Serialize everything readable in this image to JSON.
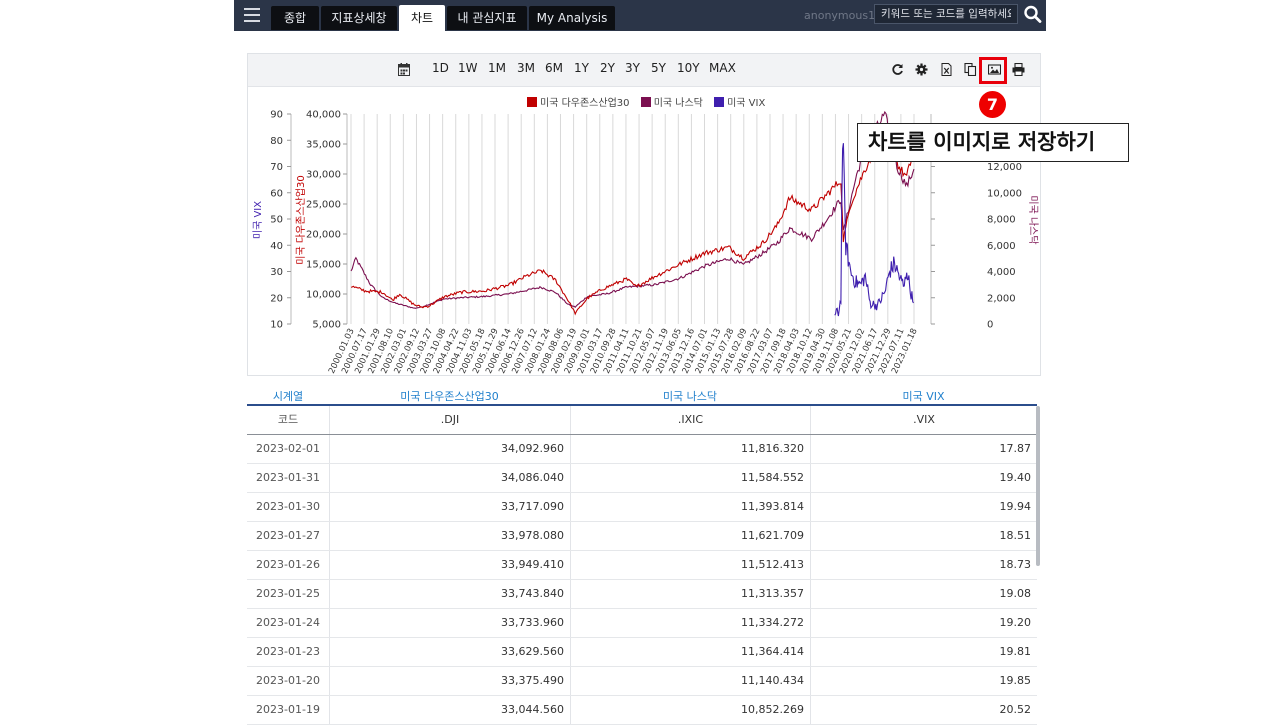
{
  "nav": {
    "tabs": [
      {
        "label": "종합"
      },
      {
        "label": "지표상세창"
      },
      {
        "label": "차트"
      },
      {
        "label": "내 관심지표"
      },
      {
        "label": "My Analysis"
      }
    ],
    "active_tab": "차트",
    "username": "anonymous1",
    "search_placeholder": "키워드 또는 코드를 입력하세요"
  },
  "toolbar": {
    "periods": [
      "1D",
      "1W",
      "1M",
      "3M",
      "6M",
      "1Y",
      "2Y",
      "3Y",
      "5Y",
      "10Y",
      "MAX"
    ],
    "icons": [
      "refresh-icon",
      "settings-icon",
      "excel-icon",
      "copy-icon",
      "image-save-icon",
      "print-icon"
    ]
  },
  "annotation": {
    "step": "7",
    "callout": "차트를 이미지로 저장하기",
    "highlight_color": "#e8000b"
  },
  "chart_data": {
    "type": "line",
    "legend_placement": "top-center",
    "series": [
      {
        "name": "미국 다우존스산업30",
        "color": "#c00000",
        "axis": "left-inner"
      },
      {
        "name": "미국 나스닥",
        "color": "#7b1050",
        "axis": "right"
      },
      {
        "name": "미국 VIX",
        "color": "#3f1fae",
        "axis": "left-outer"
      }
    ],
    "axes": {
      "vix": {
        "label": "미국 VIX",
        "ticks": [
          "90",
          "80",
          "70",
          "60",
          "50",
          "40",
          "30",
          "20",
          "10"
        ],
        "range": [
          10,
          90
        ]
      },
      "dji": {
        "label": "미국 다우존스산업30",
        "ticks": [
          "40,000",
          "35,000",
          "30,000",
          "25,000",
          "20,000",
          "15,000",
          "10,000",
          "5,000"
        ],
        "range": [
          5000,
          40000
        ]
      },
      "ixic": {
        "label": "미국 나스닥",
        "ticks": [
          "12,000",
          "10,000",
          "8,000",
          "6,000",
          "4,000",
          "2,000",
          "0"
        ],
        "range": [
          0,
          16000
        ]
      }
    },
    "x_ticks": [
      "2000.01.03",
      "2000.07.17",
      "2001.01.29",
      "2001.08.10",
      "2002.03.01",
      "2002.09.12",
      "2003.03.27",
      "2003.10.08",
      "2004.04.22",
      "2004.11.03",
      "2005.05.18",
      "2005.11.29",
      "2006.06.14",
      "2006.12.26",
      "2007.07.12",
      "2008.01.24",
      "2008.08.06",
      "2009.02.19",
      "2009.09.01",
      "2010.03.17",
      "2010.09.28",
      "2011.04.11",
      "2011.10.21",
      "2012.05.07",
      "2012.11.19",
      "2013.06.05",
      "2013.12.16",
      "2014.07.01",
      "2015.01.13",
      "2015.07.28",
      "2016.02.09",
      "2016.08.22",
      "2017.03.07",
      "2017.09.18",
      "2018.04.03",
      "2018.10.12",
      "2019.04.30",
      "2019.11.08",
      "2020.05.21",
      "2020.12.02",
      "2021.06.17",
      "2021.12.29",
      "2022.07.11",
      "2023.01.18"
    ],
    "dji_points": [
      [
        2000,
        11300
      ],
      [
        2000.6,
        10500
      ],
      [
        2001.3,
        10300
      ],
      [
        2001.7,
        9000
      ],
      [
        2002.0,
        10000
      ],
      [
        2002.6,
        8200
      ],
      [
        2002.9,
        7800
      ],
      [
        2003.2,
        8000
      ],
      [
        2003.8,
        9500
      ],
      [
        2004.5,
        10300
      ],
      [
        2005.5,
        10500
      ],
      [
        2006.5,
        11500
      ],
      [
        2007.2,
        13000
      ],
      [
        2007.8,
        13900
      ],
      [
        2008.4,
        12300
      ],
      [
        2008.9,
        9000
      ],
      [
        2009.2,
        6800
      ],
      [
        2009.7,
        9300
      ],
      [
        2010.3,
        10800
      ],
      [
        2011.3,
        12500
      ],
      [
        2011.7,
        11200
      ],
      [
        2012.5,
        13000
      ],
      [
        2013.5,
        15000
      ],
      [
        2014.5,
        16800
      ],
      [
        2015.5,
        17800
      ],
      [
        2016.1,
        16000
      ],
      [
        2016.9,
        18500
      ],
      [
        2017.5,
        21500
      ],
      [
        2018.0,
        26000
      ],
      [
        2018.9,
        24000
      ],
      [
        2019.5,
        26500
      ],
      [
        2020.1,
        29000
      ],
      [
        2020.2,
        19000
      ],
      [
        2020.5,
        25000
      ],
      [
        2020.9,
        29000
      ],
      [
        2021.5,
        34500
      ],
      [
        2022.0,
        36500
      ],
      [
        2022.5,
        31000
      ],
      [
        2022.8,
        29500
      ],
      [
        2023.1,
        34000
      ]
    ],
    "ixic_points": [
      [
        2000,
        4000
      ],
      [
        2000.2,
        5000
      ],
      [
        2000.8,
        3000
      ],
      [
        2001.3,
        2000
      ],
      [
        2001.8,
        1600
      ],
      [
        2002.6,
        1200
      ],
      [
        2002.9,
        1300
      ],
      [
        2003.8,
        1900
      ],
      [
        2004.5,
        2000
      ],
      [
        2005.5,
        2100
      ],
      [
        2006.5,
        2300
      ],
      [
        2007.8,
        2800
      ],
      [
        2008.4,
        2400
      ],
      [
        2008.9,
        1500
      ],
      [
        2009.2,
        1300
      ],
      [
        2009.7,
        2100
      ],
      [
        2010.5,
        2300
      ],
      [
        2011.3,
        2800
      ],
      [
        2012.5,
        3000
      ],
      [
        2013.5,
        3500
      ],
      [
        2014.5,
        4400
      ],
      [
        2015.5,
        5000
      ],
      [
        2016.1,
        4500
      ],
      [
        2016.9,
        5400
      ],
      [
        2017.5,
        6200
      ],
      [
        2018.0,
        7300
      ],
      [
        2018.9,
        6500
      ],
      [
        2019.5,
        7900
      ],
      [
        2020.1,
        9500
      ],
      [
        2020.2,
        7000
      ],
      [
        2020.7,
        11000
      ],
      [
        2021.0,
        13000
      ],
      [
        2021.9,
        16000
      ],
      [
        2022.4,
        12000
      ],
      [
        2022.8,
        10500
      ],
      [
        2023.1,
        11800
      ]
    ],
    "vix_points": [
      [
        2019.85,
        13
      ],
      [
        2019.95,
        15
      ],
      [
        2020.0,
        14
      ],
      [
        2020.1,
        20
      ],
      [
        2020.17,
        82
      ],
      [
        2020.3,
        40
      ],
      [
        2020.5,
        30
      ],
      [
        2020.7,
        26
      ],
      [
        2020.9,
        25
      ],
      [
        2021.1,
        28
      ],
      [
        2021.3,
        18
      ],
      [
        2021.6,
        17
      ],
      [
        2021.9,
        22
      ],
      [
        2022.1,
        30
      ],
      [
        2022.3,
        33
      ],
      [
        2022.5,
        28
      ],
      [
        2022.7,
        24
      ],
      [
        2022.8,
        31
      ],
      [
        2022.95,
        23
      ],
      [
        2023.08,
        18
      ]
    ]
  },
  "table": {
    "series_header": [
      "시계열",
      "미국 다우존스산업30",
      "미국 나스닥",
      "미국 VIX"
    ],
    "code_row": [
      "코드",
      ".DJI",
      ".IXIC",
      ".VIX"
    ],
    "rows": [
      [
        "2023-02-01",
        "34,092.960",
        "11,816.320",
        "17.87"
      ],
      [
        "2023-01-31",
        "34,086.040",
        "11,584.552",
        "19.40"
      ],
      [
        "2023-01-30",
        "33,717.090",
        "11,393.814",
        "19.94"
      ],
      [
        "2023-01-27",
        "33,978.080",
        "11,621.709",
        "18.51"
      ],
      [
        "2023-01-26",
        "33,949.410",
        "11,512.413",
        "18.73"
      ],
      [
        "2023-01-25",
        "33,743.840",
        "11,313.357",
        "19.08"
      ],
      [
        "2023-01-24",
        "33,733.960",
        "11,334.272",
        "19.20"
      ],
      [
        "2023-01-23",
        "33,629.560",
        "11,364.414",
        "19.81"
      ],
      [
        "2023-01-20",
        "33,375.490",
        "11,140.434",
        "19.85"
      ],
      [
        "2023-01-19",
        "33,044.560",
        "10,852.269",
        "20.52"
      ]
    ]
  }
}
